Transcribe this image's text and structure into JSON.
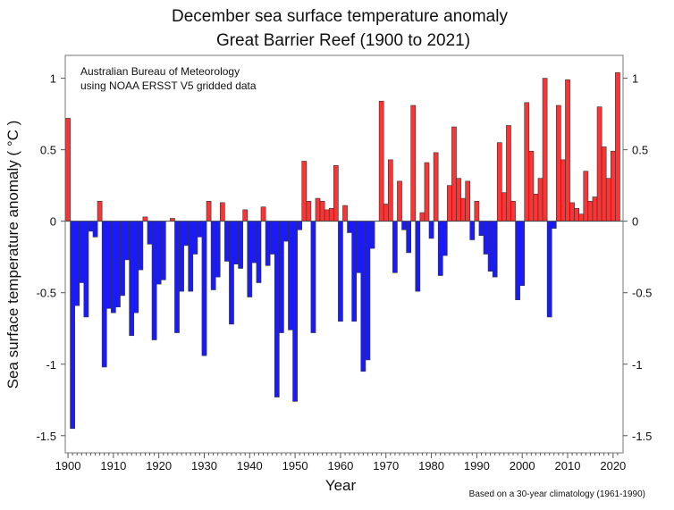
{
  "chart_data": {
    "type": "bar",
    "title": "December sea surface temperature anomaly",
    "subtitle": "Great Barrier Reef (1900 to 2021)",
    "xlabel": "Year",
    "ylabel": "Sea surface temperature anomaly ( °C )",
    "annotation_lines": [
      "Australian Bureau of Meteorology",
      "using NOAA ERSST V5 gridded data"
    ],
    "footnote": "Based on a 30-year climatology (1961-1990)",
    "xlim": [
      1899.4,
      2022.2
    ],
    "ylim": [
      -1.62,
      1.16
    ],
    "x_ticks": [
      "1900",
      "1910",
      "1920",
      "1930",
      "1940",
      "1950",
      "1960",
      "1970",
      "1980",
      "1990",
      "2000",
      "2010",
      "2020"
    ],
    "y_ticks": [
      "1",
      "0.5",
      "0",
      "-0.5",
      "-1",
      "-1.5"
    ],
    "grid": false,
    "colors": {
      "positive": "#ff3333",
      "negative": "#1a1aff"
    },
    "start_year": 1900,
    "values": [
      0.72,
      -1.45,
      -0.59,
      -0.43,
      -0.67,
      -0.07,
      -0.11,
      0.14,
      -1.02,
      -0.61,
      -0.64,
      -0.6,
      -0.52,
      -0.27,
      -0.8,
      -0.64,
      -0.34,
      0.03,
      -0.16,
      -0.83,
      -0.44,
      -0.41,
      0.0,
      0.02,
      -0.78,
      -0.49,
      -0.17,
      -0.49,
      -0.23,
      -0.11,
      -0.94,
      0.14,
      -0.48,
      -0.39,
      0.13,
      -0.28,
      -0.72,
      -0.3,
      -0.33,
      0.08,
      -0.53,
      -0.29,
      -0.43,
      0.1,
      -0.31,
      -0.23,
      -1.23,
      -0.78,
      -0.14,
      -0.76,
      -1.26,
      -0.06,
      0.42,
      0.14,
      -0.78,
      0.16,
      0.14,
      0.08,
      0.09,
      0.39,
      -0.7,
      0.11,
      -0.08,
      -0.7,
      -0.36,
      -1.05,
      -0.97,
      -0.19,
      0.0,
      0.84,
      0.12,
      0.43,
      -0.36,
      0.28,
      -0.06,
      -0.22,
      0.81,
      -0.49,
      0.06,
      0.41,
      -0.12,
      0.48,
      -0.38,
      -0.24,
      0.25,
      0.66,
      0.3,
      0.16,
      0.28,
      -0.13,
      0.14,
      -0.1,
      -0.23,
      -0.35,
      -0.39,
      0.55,
      0.2,
      0.67,
      0.14,
      -0.55,
      -0.45,
      0.83,
      0.49,
      0.19,
      0.3,
      1.0,
      -0.67,
      -0.05,
      0.81,
      0.43,
      0.99,
      0.13,
      0.09,
      0.05,
      0.35,
      0.14,
      0.17,
      0.8,
      0.52,
      0.3,
      0.49,
      1.04
    ]
  }
}
